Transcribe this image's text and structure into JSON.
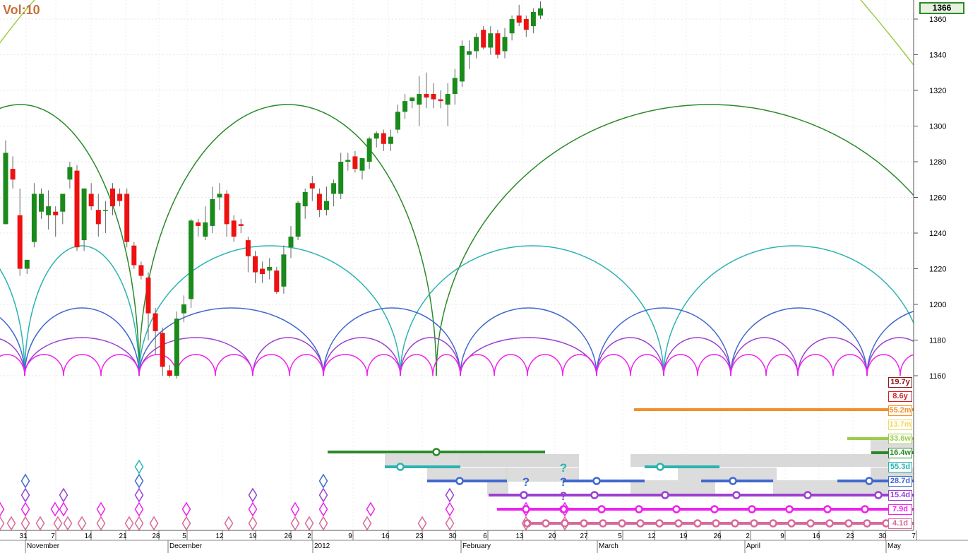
{
  "header": {
    "vol_label": "Vol:10",
    "last_price": "1366"
  },
  "colors": {
    "up": "#1a8a1a",
    "down": "#ee1111",
    "c_19_7y": "#8b1a1a",
    "c_8_6y": "#d81b24",
    "c_55_2m": "#f0902a",
    "c_13_7m": "#f0d860",
    "c_33_6w": "#9dcc4a",
    "c_16_4w": "#2a8a2a",
    "c_55_3d": "#2ab3b0",
    "c_28_7d": "#4168cc",
    "c_15_4d": "#9a40d0",
    "c_7_9d": "#ee22ee",
    "c_4_1d": "#d86a9a"
  },
  "cycle_labels": [
    {
      "text": "19.7y",
      "color": "#8b1a1a"
    },
    {
      "text": "8.6y",
      "color": "#d81b24"
    },
    {
      "text": "55.2m",
      "color": "#f0902a"
    },
    {
      "text": "13.7m",
      "color": "#f0d860"
    },
    {
      "text": "33.6w",
      "color": "#9dcc4a"
    },
    {
      "text": "16.4w",
      "color": "#2a8a2a"
    },
    {
      "text": "55.3d",
      "color": "#2ab3b0"
    },
    {
      "text": "28.7d",
      "color": "#4168cc"
    },
    {
      "text": "15.4d",
      "color": "#9a40d0"
    },
    {
      "text": "7.9d",
      "color": "#ee22ee"
    },
    {
      "text": "4.1d",
      "color": "#d86a9a"
    }
  ],
  "question_marks": [
    {
      "text": "?",
      "color": "#2ab3b0"
    },
    {
      "text": "?",
      "color": "#4168cc"
    },
    {
      "text": "?",
      "color": "#4168cc"
    },
    {
      "text": "?",
      "color": "#9a40d0"
    }
  ],
  "chart_data": {
    "type": "candlestick",
    "y_axis": {
      "ticks": [
        1160,
        1180,
        1200,
        1220,
        1240,
        1260,
        1280,
        1300,
        1320,
        1340,
        1360
      ],
      "range": [
        1158,
        1370
      ],
      "side": "right"
    },
    "x_axis": {
      "day_ticks": [
        "31",
        "7",
        "14",
        "21",
        "28",
        "5",
        "12",
        "19",
        "26",
        "2",
        "9",
        "16",
        "23",
        "30",
        "6",
        "13",
        "20",
        "27",
        "5",
        "12",
        "19",
        "26",
        "2",
        "9",
        "16",
        "23",
        "30",
        "7"
      ],
      "month_labels": [
        "November",
        "December",
        "2012",
        "February",
        "March",
        "April",
        "May"
      ]
    },
    "candles": [
      [
        1245,
        1292,
        1245,
        1285
      ],
      [
        1276,
        1283,
        1265,
        1270
      ],
      [
        1250,
        1265,
        1216,
        1220
      ],
      [
        1220,
        1225,
        1217,
        1225
      ],
      [
        1235,
        1268,
        1232,
        1262
      ],
      [
        1252,
        1265,
        1248,
        1262
      ],
      [
        1250,
        1264,
        1242,
        1255
      ],
      [
        1252,
        1255,
        1238,
        1250
      ],
      [
        1252,
        1262,
        1245,
        1262
      ],
      [
        1270,
        1280,
        1265,
        1277
      ],
      [
        1275,
        1278,
        1230,
        1232
      ],
      [
        1236,
        1265,
        1230,
        1265
      ],
      [
        1262,
        1268,
        1253,
        1255
      ],
      [
        1253,
        1262,
        1238,
        1245
      ],
      [
        1253,
        1258,
        1240,
        1253
      ],
      [
        1265,
        1268,
        1250,
        1255
      ],
      [
        1262,
        1265,
        1255,
        1258
      ],
      [
        1262,
        1265,
        1232,
        1235
      ],
      [
        1233,
        1235,
        1220,
        1222
      ],
      [
        1222,
        1224,
        1214,
        1216
      ],
      [
        1215,
        1218,
        1180,
        1195
      ],
      [
        1195,
        1198,
        1172,
        1185
      ],
      [
        1184,
        1187,
        1160,
        1165
      ],
      [
        1163,
        1166,
        1159,
        1160
      ],
      [
        1160,
        1196,
        1158,
        1192
      ],
      [
        1195,
        1205,
        1190,
        1200
      ],
      [
        1203,
        1248,
        1198,
        1247
      ],
      [
        1246,
        1248,
        1238,
        1244
      ],
      [
        1238,
        1255,
        1236,
        1246
      ],
      [
        1244,
        1266,
        1240,
        1259
      ],
      [
        1260,
        1268,
        1253,
        1262
      ],
      [
        1262,
        1264,
        1238,
        1245
      ],
      [
        1247,
        1250,
        1235,
        1238
      ],
      [
        1245,
        1248,
        1240,
        1244
      ],
      [
        1236,
        1238,
        1218,
        1227
      ],
      [
        1227,
        1230,
        1212,
        1218
      ],
      [
        1220,
        1224,
        1212,
        1217
      ],
      [
        1219,
        1226,
        1214,
        1221
      ],
      [
        1219,
        1221,
        1206,
        1207
      ],
      [
        1210,
        1233,
        1206,
        1228
      ],
      [
        1232,
        1244,
        1226,
        1238
      ],
      [
        1238,
        1258,
        1236,
        1257
      ],
      [
        1255,
        1265,
        1248,
        1263
      ],
      [
        1268,
        1272,
        1258,
        1265
      ],
      [
        1262,
        1265,
        1249,
        1253
      ],
      [
        1253,
        1266,
        1250,
        1258
      ],
      [
        1262,
        1270,
        1255,
        1268
      ],
      [
        1262,
        1285,
        1259,
        1280
      ],
      [
        1280,
        1285,
        1275,
        1281
      ],
      [
        1283,
        1286,
        1274,
        1276
      ],
      [
        1275,
        1282,
        1270,
        1282
      ],
      [
        1280,
        1294,
        1276,
        1293
      ],
      [
        1293,
        1297,
        1288,
        1296
      ],
      [
        1296,
        1298,
        1286,
        1290
      ],
      [
        1290,
        1298,
        1286,
        1294
      ],
      [
        1298,
        1312,
        1296,
        1308
      ],
      [
        1308,
        1318,
        1304,
        1314
      ],
      [
        1314,
        1316,
        1310,
        1316
      ],
      [
        1312,
        1328,
        1300,
        1318
      ],
      [
        1318,
        1330,
        1310,
        1316
      ],
      [
        1318,
        1324,
        1310,
        1315
      ],
      [
        1315,
        1320,
        1310,
        1314
      ],
      [
        1312,
        1324,
        1300,
        1318
      ],
      [
        1318,
        1332,
        1312,
        1327
      ],
      [
        1325,
        1348,
        1322,
        1345
      ],
      [
        1340,
        1348,
        1332,
        1342
      ],
      [
        1342,
        1352,
        1338,
        1350
      ],
      [
        1354,
        1356,
        1343,
        1344
      ],
      [
        1344,
        1356,
        1340,
        1352
      ],
      [
        1352,
        1354,
        1338,
        1340
      ],
      [
        1342,
        1355,
        1338,
        1350
      ],
      [
        1352,
        1362,
        1348,
        1360
      ],
      [
        1362,
        1368,
        1356,
        1358
      ],
      [
        1360,
        1362,
        1350,
        1354
      ],
      [
        1356,
        1366,
        1352,
        1364
      ],
      [
        1362,
        1370,
        1360,
        1366
      ]
    ]
  }
}
